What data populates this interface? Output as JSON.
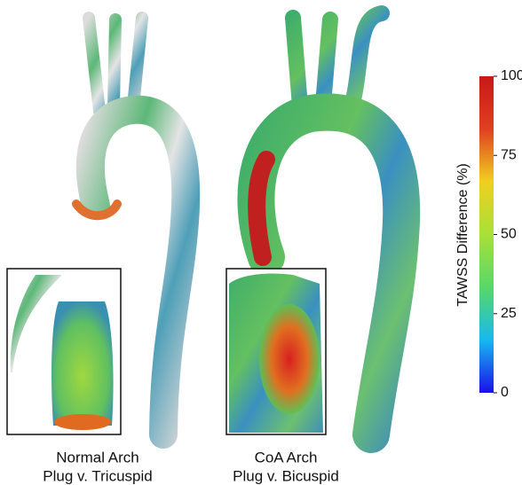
{
  "panels": [
    {
      "title": "Normal Arch",
      "subtitle": "Plug v. Tricuspid"
    },
    {
      "title": "CoA Arch",
      "subtitle": "Plug v. Bicuspid"
    }
  ],
  "colorbar": {
    "label": "TAWSS Difference (%)",
    "lim": [
      0,
      100
    ],
    "ticks": [
      0,
      25,
      50,
      75,
      100
    ],
    "colors": [
      "#1a10e8",
      "#18b8f0",
      "#58d868",
      "#a8e038",
      "#f0d020",
      "#e04020",
      "#c81818"
    ]
  }
}
